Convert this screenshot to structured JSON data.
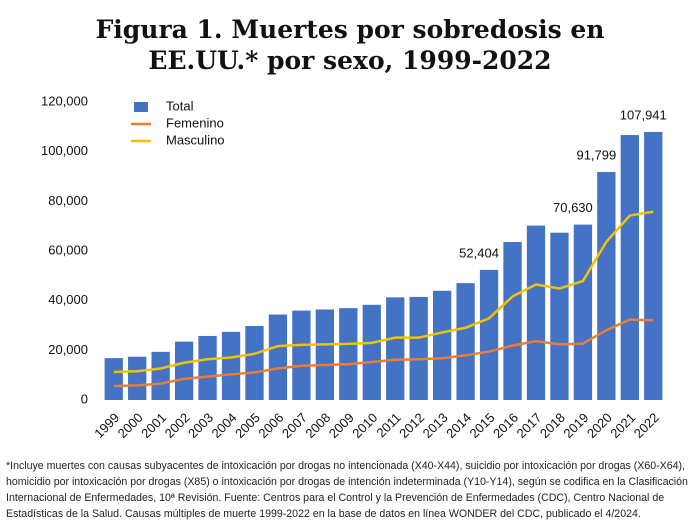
{
  "chart_data": {
    "type": "bar",
    "title": "Figura 1. Muertes por sobredosis en EE.UU.* por sexo, 1999-2022",
    "footnote": "*Incluye muertes con causas subyacentes de intoxicación por drogas no intencionada (X40-X44), suicidio por intoxicación por drogas (X60-X64), homicidio por intoxicación por drogas (X85) o intoxicación por drogas de intención indeterminada (Y10-Y14), según se codifica en la Clasificación Internacional de Enfermedades, 10ª Revisión. Fuente: Centros para el Control y la Prevención de Enfermedades (CDC), Centro Nacional de Estadísticas de la Salud. Causas múltiples de muerte 1999-2022 en la base de datos en línea WONDER del CDC, publicado el 4/2024.",
    "categories": [
      "1999",
      "2000",
      "2001",
      "2002",
      "2003",
      "2004",
      "2005",
      "2006",
      "2007",
      "2008",
      "2009",
      "2010",
      "2011",
      "2012",
      "2013",
      "2014",
      "2015",
      "2016",
      "2017",
      "2018",
      "2019",
      "2020",
      "2021",
      "2022"
    ],
    "series": [
      {
        "name": "Total",
        "type": "bar",
        "color": "#4472c4",
        "values": [
          16849,
          17415,
          19394,
          23518,
          25785,
          27424,
          29813,
          34425,
          36010,
          36450,
          37004,
          38329,
          41340,
          41502,
          43982,
          47055,
          52404,
          63632,
          70237,
          67367,
          70630,
          91799,
          106699,
          107941
        ],
        "value_labels": [
          null,
          null,
          null,
          null,
          null,
          null,
          null,
          null,
          null,
          null,
          null,
          null,
          null,
          null,
          null,
          null,
          "52,404",
          null,
          null,
          null,
          "70,630",
          "91,799",
          null,
          "107,941"
        ]
      },
      {
        "name": "Femenino",
        "type": "line",
        "color": "#ed7d31",
        "values": [
          5600,
          5900,
          6600,
          8500,
          9400,
          10300,
          11100,
          12700,
          13800,
          14100,
          14400,
          15300,
          16200,
          16400,
          16800,
          18000,
          19500,
          21900,
          23700,
          22400,
          22700,
          28100,
          32400,
          32100
        ]
      },
      {
        "name": "Masculino",
        "type": "line",
        "color": "#f2c200",
        "values": [
          11300,
          11600,
          12700,
          15000,
          16400,
          17100,
          18600,
          21700,
          22200,
          22400,
          22600,
          23000,
          25100,
          25100,
          27200,
          29100,
          32900,
          41700,
          46500,
          44900,
          47900,
          63700,
          74300,
          75800
        ]
      }
    ],
    "ylim": [
      0,
      120000
    ],
    "yticks": [
      0,
      {
        "value": 20000,
        "label": "20,000"
      },
      {
        "value": 40000,
        "label": "40,000"
      },
      {
        "value": 60000,
        "label": "60,000"
      },
      {
        "value": 80000,
        "label": "80,000"
      },
      {
        "value": 100000,
        "label": "100,000"
      },
      {
        "value": 120000,
        "label": "120,000"
      }
    ],
    "grid": false,
    "legend": "top-left"
  }
}
